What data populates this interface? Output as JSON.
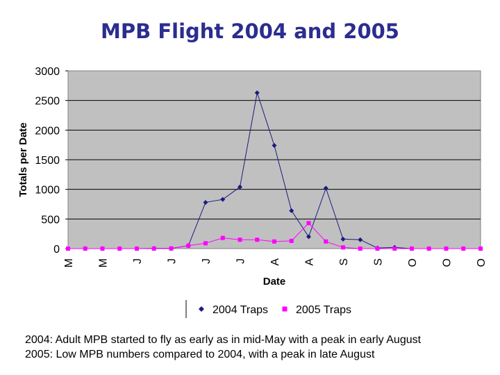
{
  "title": "MPB Flight 2004 and 2005",
  "captions": [
    "2004: Adult MPB started to fly as early as in mid-May with a peak in early August",
    "2005: Low MPB numbers compared to 2004, with a peak in late August"
  ],
  "chart_data": {
    "type": "line",
    "title": "",
    "xlabel": "Date",
    "ylabel": "Totals per Date",
    "ylim": [
      0,
      3000
    ],
    "yticks": [
      0,
      500,
      1000,
      1500,
      2000,
      2500,
      3000
    ],
    "x_tick_labels": [
      "M",
      "M",
      "J",
      "J",
      "J",
      "J",
      "A",
      "A",
      "S",
      "S",
      "O",
      "O",
      "O"
    ],
    "grid": true,
    "legend": "bottom",
    "series": [
      {
        "name": "2004 Traps",
        "color": "#1a1a80",
        "marker": "diamond",
        "values": [
          0,
          0,
          0,
          0,
          0,
          5,
          2,
          50,
          780,
          830,
          1040,
          2630,
          1740,
          640,
          200,
          1020,
          160,
          150,
          10,
          20,
          0,
          0,
          0,
          0,
          0
        ]
      },
      {
        "name": "2005 Traps",
        "color": "#ff00ff",
        "marker": "square",
        "values": [
          0,
          0,
          0,
          0,
          0,
          0,
          2,
          50,
          90,
          180,
          150,
          150,
          120,
          130,
          430,
          120,
          20,
          0,
          0,
          0,
          0,
          0,
          0,
          0,
          0
        ]
      }
    ]
  }
}
